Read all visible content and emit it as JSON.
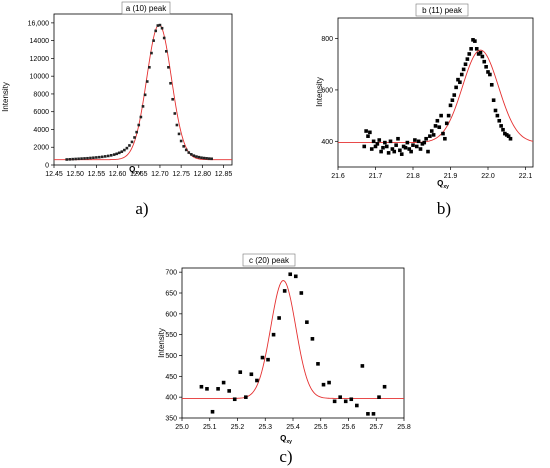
{
  "chart_data": [
    {
      "type": "scatter",
      "title": "a (10) peak",
      "xlabel": "Q",
      "xlabel_sub": "xy",
      "ylabel": "Intensity",
      "sublabel": "a)",
      "xlim": [
        12.45,
        12.87
      ],
      "ylim": [
        0,
        17000
      ],
      "xticks": [
        12.45,
        12.5,
        12.55,
        12.6,
        12.65,
        12.7,
        12.75,
        12.8,
        12.85
      ],
      "xtick_labels": [
        "12.45",
        "12.50",
        "12.55",
        "12.60",
        "12.65",
        "12.70",
        "12.75",
        "12.80",
        "12.85"
      ],
      "yticks": [
        0,
        2000,
        4000,
        6000,
        8000,
        10000,
        12000,
        14000,
        16000
      ],
      "ytick_labels": [
        "0",
        "2000",
        "4000",
        "6000",
        "8000",
        "10000",
        "12000",
        "14000",
        "16,000"
      ],
      "fit": {
        "type": "gaussian",
        "color": "#e53030",
        "baseline": 600,
        "amplitude": 15200,
        "center": 12.698,
        "sigma": 0.029
      },
      "series": [
        {
          "marker_color": "#222222",
          "x": [
            12.48,
            12.487,
            12.494,
            12.501,
            12.508,
            12.515,
            12.522,
            12.529,
            12.536,
            12.543,
            12.55,
            12.557,
            12.564,
            12.571,
            12.578,
            12.585,
            12.592,
            12.598,
            12.604,
            12.61,
            12.616,
            12.622,
            12.628,
            12.634,
            12.64,
            12.645,
            12.65,
            12.655,
            12.66,
            12.665,
            12.67,
            12.675,
            12.68,
            12.685,
            12.69,
            12.695,
            12.7,
            12.705,
            12.71,
            12.715,
            12.72,
            12.725,
            12.73,
            12.735,
            12.74,
            12.745,
            12.75,
            12.756,
            12.762,
            12.768,
            12.774,
            12.78,
            12.786,
            12.792,
            12.798,
            12.804,
            12.81,
            12.816,
            12.822
          ],
          "y": [
            620,
            640,
            660,
            680,
            700,
            720,
            740,
            760,
            790,
            820,
            850,
            880,
            920,
            970,
            1020,
            1090,
            1170,
            1260,
            1370,
            1500,
            1680,
            1900,
            2200,
            2600,
            3100,
            3700,
            4500,
            5400,
            6600,
            7900,
            9400,
            11000,
            12600,
            14000,
            15100,
            15700,
            15750,
            15400,
            14300,
            12800,
            11000,
            9200,
            7400,
            5800,
            4500,
            3500,
            2700,
            2100,
            1700,
            1400,
            1200,
            1050,
            950,
            880,
            820,
            780,
            750,
            720,
            700
          ]
        }
      ]
    },
    {
      "type": "scatter",
      "title": "b (11) peak",
      "xlabel": "Q",
      "xlabel_sub": "xy",
      "ylabel": "Intensity",
      "sublabel": "b)",
      "xlim": [
        21.6,
        22.12
      ],
      "ylim": [
        300,
        880
      ],
      "xticks": [
        21.6,
        21.7,
        21.8,
        21.9,
        22.0,
        22.1
      ],
      "xtick_labels": [
        "21.6",
        "21.7",
        "21.8",
        "21.9",
        "22.0",
        "22.1"
      ],
      "yticks": [
        400,
        600,
        800
      ],
      "ytick_labels": [
        "400",
        "600",
        "800"
      ],
      "fit": {
        "type": "gaussian",
        "color": "#e53030",
        "baseline": 395,
        "amplitude": 360,
        "center": 21.98,
        "sigma": 0.048
      },
      "series": [
        {
          "marker_color": "#000000",
          "x": [
            21.67,
            21.675,
            21.68,
            21.685,
            21.69,
            21.695,
            21.7,
            21.705,
            21.71,
            21.715,
            21.72,
            21.725,
            21.73,
            21.735,
            21.74,
            21.745,
            21.75,
            21.755,
            21.76,
            21.765,
            21.77,
            21.775,
            21.78,
            21.785,
            21.79,
            21.795,
            21.8,
            21.805,
            21.81,
            21.815,
            21.82,
            21.825,
            21.83,
            21.835,
            21.84,
            21.845,
            21.85,
            21.855,
            21.86,
            21.865,
            21.87,
            21.875,
            21.88,
            21.885,
            21.89,
            21.895,
            21.9,
            21.905,
            21.91,
            21.915,
            21.92,
            21.925,
            21.93,
            21.935,
            21.94,
            21.945,
            21.95,
            21.955,
            21.96,
            21.965,
            21.97,
            21.975,
            21.98,
            21.985,
            21.99,
            21.995,
            22.0,
            22.005,
            22.01,
            22.015,
            22.02,
            22.025,
            22.03,
            22.035,
            22.04,
            22.045,
            22.05,
            22.055,
            22.06
          ],
          "y": [
            380,
            440,
            420,
            435,
            370,
            400,
            380,
            390,
            405,
            360,
            375,
            395,
            380,
            355,
            400,
            370,
            360,
            385,
            410,
            365,
            350,
            380,
            375,
            395,
            370,
            360,
            385,
            405,
            380,
            400,
            370,
            390,
            395,
            410,
            360,
            420,
            440,
            425,
            460,
            480,
            455,
            500,
            430,
            410,
            470,
            500,
            540,
            560,
            580,
            610,
            640,
            630,
            660,
            680,
            700,
            720,
            740,
            760,
            795,
            790,
            760,
            740,
            745,
            730,
            710,
            690,
            670,
            660,
            620,
            560,
            520,
            500,
            480,
            460,
            445,
            430,
            425,
            420,
            410
          ]
        }
      ]
    },
    {
      "type": "scatter",
      "title": "c (20) peak",
      "xlabel": "Q",
      "xlabel_sub": "xy",
      "ylabel": "Intensity",
      "sublabel": "c)",
      "xlim": [
        25.0,
        25.8
      ],
      "ylim": [
        350,
        710
      ],
      "xticks": [
        25.0,
        25.1,
        25.2,
        25.3,
        25.4,
        25.5,
        25.6,
        25.7,
        25.8
      ],
      "xtick_labels": [
        "25.0",
        "25.1",
        "25.2",
        "25.3",
        "25.4",
        "25.5",
        "25.6",
        "25.7",
        "25.8"
      ],
      "yticks": [
        350,
        400,
        450,
        500,
        550,
        600,
        650,
        700
      ],
      "ytick_labels": [
        "350",
        "400",
        "450",
        "500",
        "550",
        "600",
        "650",
        "700"
      ],
      "fit": {
        "type": "gaussian",
        "color": "#e53030",
        "baseline": 397,
        "amplitude": 283,
        "center": 25.365,
        "sigma": 0.045
      },
      "series": [
        {
          "marker_color": "#000000",
          "x": [
            25.07,
            25.09,
            25.11,
            25.13,
            25.15,
            25.17,
            25.19,
            25.21,
            25.23,
            25.25,
            25.27,
            25.29,
            25.31,
            25.33,
            25.35,
            25.37,
            25.39,
            25.41,
            25.43,
            25.45,
            25.47,
            25.49,
            25.51,
            25.53,
            25.55,
            25.57,
            25.59,
            25.61,
            25.63,
            25.65,
            25.67,
            25.69,
            25.71,
            25.73
          ],
          "y": [
            425,
            420,
            365,
            420,
            435,
            415,
            395,
            460,
            400,
            455,
            440,
            495,
            490,
            550,
            590,
            655,
            695,
            690,
            650,
            580,
            540,
            480,
            430,
            435,
            390,
            400,
            390,
            395,
            380,
            475,
            360,
            360,
            400,
            425
          ]
        }
      ]
    }
  ]
}
